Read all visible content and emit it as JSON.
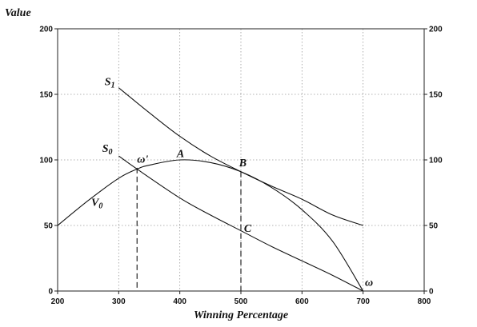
{
  "chart_data": {
    "type": "line",
    "ylabel": "Value",
    "xlabel": "Winning Percentage",
    "xlim": [
      200,
      800
    ],
    "ylim": [
      0,
      200
    ],
    "x_ticks": [
      "200",
      "300",
      "400",
      "500",
      "600",
      "700",
      "800"
    ],
    "y_ticks_left": [
      "0",
      "50",
      "100",
      "150",
      "200"
    ],
    "y_ticks_right": [
      "0",
      "50",
      "100",
      "150",
      "200"
    ],
    "grid": true,
    "series": [
      {
        "name": "V0",
        "x": [
          200,
          250,
          300,
          330,
          350,
          400,
          450,
          500,
          550,
          600,
          650,
          700
        ],
        "y": [
          50,
          69,
          86,
          93,
          96,
          100,
          98,
          91,
          79,
          62,
          38,
          0
        ]
      },
      {
        "name": "S1",
        "x": [
          300,
          350,
          400,
          450,
          500,
          550,
          600,
          650,
          700
        ],
        "y": [
          155,
          136,
          118,
          103,
          91,
          80,
          70,
          58,
          50
        ]
      },
      {
        "name": "S0",
        "x": [
          300,
          330,
          400,
          450,
          500,
          550,
          600,
          650,
          700
        ],
        "y": [
          103,
          93,
          71,
          58,
          46,
          34,
          23,
          12,
          0
        ]
      }
    ],
    "vertical_lines": [
      {
        "x": 330,
        "y_top": 94
      },
      {
        "x": 500,
        "y_top": 91
      }
    ],
    "annotations": [
      {
        "text": "S",
        "sub": "1",
        "x": 277,
        "y": 157
      },
      {
        "text": "S",
        "sub": "0",
        "x": 273,
        "y": 106
      },
      {
        "text": "ω'",
        "x": 330,
        "y": 98
      },
      {
        "text": "A",
        "x": 395,
        "y": 102
      },
      {
        "text": "B",
        "x": 497,
        "y": 95
      },
      {
        "text": "V",
        "sub": "0",
        "x": 255,
        "y": 65
      },
      {
        "text": "C",
        "x": 505,
        "y": 45
      },
      {
        "text": "ω",
        "x": 703,
        "y": 4
      }
    ]
  }
}
